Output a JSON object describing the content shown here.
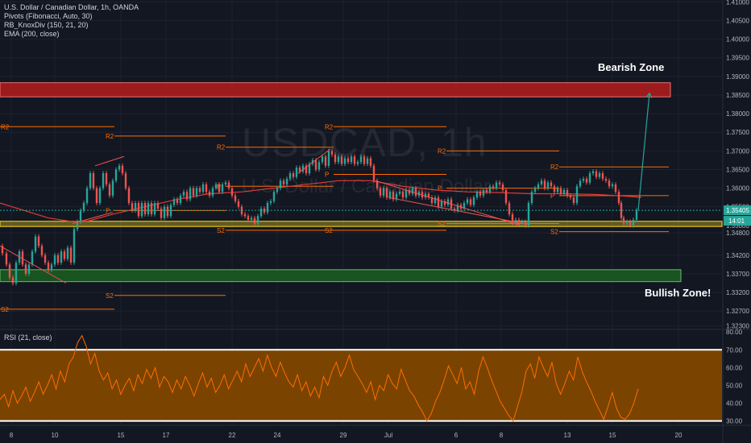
{
  "legend": {
    "symbol": "U.S. Dollar / Canadian Dollar, 1h, OANDA",
    "ind1": "Pivots (Fibonacci, Auto, 30)",
    "ind2": "RB_KnoxDiv (150, 21, 20)",
    "ind3": "EMA (200, close)"
  },
  "rsi_label": "RSI (21, close)",
  "watermark": "USDCAD, 1h",
  "watermark_sub": "U.S. Dollar / Canadian Dollar",
  "zones": {
    "bearish": "Bearish Zone",
    "bullish": "Bullish Zone!"
  },
  "price_badges": {
    "last": "1.35405",
    "countdown": "14:01"
  },
  "colors": {
    "background": "#131722",
    "candle_up": "#26a69a",
    "candle_down": "#ef5350",
    "pivot": "#ff6d00",
    "ema": "#e53935",
    "bearish_zone": "#b71c1c",
    "bullish_zone": "#1b5e20",
    "support_band": "#f9d71c",
    "rsi_fill": "#7a4300",
    "rsi_line": "#ff6d00",
    "projection": "#26a69a"
  },
  "chart_data": [
    {
      "type": "candlestick",
      "title": "USDCAD, 1h",
      "y_ticks": [
        "1.41000",
        "1.40500",
        "1.40000",
        "1.39500",
        "1.39000",
        "1.38500",
        "1.38000",
        "1.37500",
        "1.37000",
        "1.36500",
        "1.36000",
        "1.35500",
        "1.35000",
        "1.34800",
        "1.34200",
        "1.33700",
        "1.33200",
        "1.32700",
        "1.32300"
      ],
      "x_ticks": [
        "8",
        "10",
        "15",
        "17",
        "22",
        "24",
        "29",
        "Jul",
        "6",
        "8",
        "13",
        "15",
        "20"
      ],
      "ylim": [
        1.3225,
        1.4105
      ],
      "last_price": 1.35405,
      "zones": [
        {
          "name": "Bearish Zone",
          "y_from": 1.3845,
          "y_to": 1.3883
        },
        {
          "name": "Bullish Zone!",
          "y_from": 1.3349,
          "y_to": 1.3381
        },
        {
          "name": "support",
          "y_from": 1.3497,
          "y_to": 1.3511
        }
      ],
      "pivot_labels": [
        "R2",
        "P",
        "S2"
      ],
      "price_path": [
        [
          0,
          1.3445
        ],
        [
          6,
          1.3425
        ],
        [
          10,
          1.3395
        ],
        [
          14,
          1.336
        ],
        [
          18,
          1.3345
        ],
        [
          22,
          1.34
        ],
        [
          26,
          1.343
        ],
        [
          30,
          1.3395
        ],
        [
          34,
          1.337
        ],
        [
          38,
          1.3395
        ],
        [
          42,
          1.343
        ],
        [
          46,
          1.347
        ],
        [
          50,
          1.3445
        ],
        [
          54,
          1.342
        ],
        [
          58,
          1.34
        ],
        [
          62,
          1.338
        ],
        [
          66,
          1.3395
        ],
        [
          70,
          1.342
        ],
        [
          74,
          1.34
        ],
        [
          78,
          1.343
        ],
        [
          82,
          1.341
        ],
        [
          86,
          1.344
        ],
        [
          90,
          1.34
        ],
        [
          94,
          1.349
        ],
        [
          98,
          1.351
        ],
        [
          102,
          1.354
        ],
        [
          106,
          1.356
        ],
        [
          110,
          1.36
        ],
        [
          114,
          1.364
        ],
        [
          118,
          1.36
        ],
        [
          122,
          1.356
        ],
        [
          126,
          1.36
        ],
        [
          130,
          1.364
        ],
        [
          134,
          1.361
        ],
        [
          138,
          1.358
        ],
        [
          142,
          1.362
        ],
        [
          146,
          1.365
        ],
        [
          150,
          1.366
        ],
        [
          154,
          1.364
        ],
        [
          158,
          1.36
        ],
        [
          162,
          1.356
        ],
        [
          166,
          1.354
        ],
        [
          170,
          1.356
        ],
        [
          174,
          1.3525
        ],
        [
          178,
          1.356
        ],
        [
          182,
          1.353
        ],
        [
          186,
          1.356
        ],
        [
          190,
          1.353
        ],
        [
          194,
          1.356
        ],
        [
          198,
          1.3545
        ],
        [
          202,
          1.352
        ],
        [
          206,
          1.355
        ],
        [
          210,
          1.3525
        ],
        [
          214,
          1.3555
        ],
        [
          218,
          1.357
        ],
        [
          222,
          1.356
        ],
        [
          226,
          1.358
        ],
        [
          230,
          1.359
        ],
        [
          234,
          1.357
        ],
        [
          238,
          1.36
        ],
        [
          242,
          1.358
        ],
        [
          246,
          1.36
        ],
        [
          250,
          1.359
        ],
        [
          254,
          1.361
        ],
        [
          258,
          1.359
        ],
        [
          262,
          1.358
        ],
        [
          266,
          1.36
        ],
        [
          270,
          1.361
        ],
        [
          274,
          1.359
        ],
        [
          278,
          1.361
        ],
        [
          282,
          1.3615
        ],
        [
          286,
          1.36
        ],
        [
          290,
          1.358
        ],
        [
          294,
          1.3565
        ],
        [
          298,
          1.355
        ],
        [
          302,
          1.353
        ],
        [
          306,
          1.3525
        ],
        [
          310,
          1.3515
        ],
        [
          314,
          1.352
        ],
        [
          318,
          1.3505
        ],
        [
          322,
          1.3525
        ],
        [
          326,
          1.3545
        ],
        [
          330,
          1.3535
        ],
        [
          334,
          1.356
        ],
        [
          338,
          1.3565
        ],
        [
          342,
          1.359
        ],
        [
          346,
          1.36
        ],
        [
          350,
          1.362
        ],
        [
          354,
          1.361
        ],
        [
          358,
          1.3625
        ],
        [
          362,
          1.364
        ],
        [
          366,
          1.363
        ],
        [
          370,
          1.3655
        ],
        [
          374,
          1.3645
        ],
        [
          378,
          1.366
        ],
        [
          382,
          1.364
        ],
        [
          386,
          1.3665
        ],
        [
          390,
          1.3675
        ],
        [
          394,
          1.365
        ],
        [
          398,
          1.367
        ],
        [
          402,
          1.3685
        ],
        [
          406,
          1.366
        ],
        [
          410,
          1.37
        ],
        [
          414,
          1.369
        ],
        [
          418,
          1.367
        ],
        [
          422,
          1.3685
        ],
        [
          426,
          1.3665
        ],
        [
          430,
          1.368
        ],
        [
          434,
          1.367
        ],
        [
          438,
          1.3685
        ],
        [
          442,
          1.3665
        ],
        [
          446,
          1.367
        ],
        [
          450,
          1.3685
        ],
        [
          454,
          1.3665
        ],
        [
          458,
          1.368
        ],
        [
          462,
          1.366
        ],
        [
          466,
          1.362
        ],
        [
          470,
          1.36
        ],
        [
          474,
          1.358
        ],
        [
          478,
          1.36
        ],
        [
          482,
          1.3575
        ],
        [
          486,
          1.359
        ],
        [
          490,
          1.357
        ],
        [
          494,
          1.3585
        ],
        [
          498,
          1.359
        ],
        [
          502,
          1.3575
        ],
        [
          506,
          1.3595
        ],
        [
          510,
          1.3585
        ],
        [
          514,
          1.36
        ],
        [
          518,
          1.358
        ],
        [
          522,
          1.359
        ],
        [
          526,
          1.3575
        ],
        [
          530,
          1.3585
        ],
        [
          534,
          1.3575
        ],
        [
          538,
          1.356
        ],
        [
          542,
          1.3575
        ],
        [
          546,
          1.355
        ],
        [
          550,
          1.3565
        ],
        [
          554,
          1.3555
        ],
        [
          558,
          1.357
        ],
        [
          562,
          1.3545
        ],
        [
          566,
          1.354
        ],
        [
          570,
          1.3555
        ],
        [
          574,
          1.3545
        ],
        [
          578,
          1.356
        ],
        [
          582,
          1.357
        ],
        [
          586,
          1.3555
        ],
        [
          590,
          1.3575
        ],
        [
          594,
          1.359
        ],
        [
          598,
          1.358
        ],
        [
          602,
          1.3595
        ],
        [
          606,
          1.359
        ],
        [
          610,
          1.3605
        ],
        [
          614,
          1.36
        ],
        [
          618,
          1.3615
        ],
        [
          622,
          1.361
        ],
        [
          626,
          1.3595
        ],
        [
          630,
          1.356
        ],
        [
          634,
          1.353
        ],
        [
          638,
          1.3505
        ],
        [
          642,
          1.3515
        ],
        [
          646,
          1.3505
        ],
        [
          650,
          1.351
        ],
        [
          654,
          1.35
        ],
        [
          658,
          1.356
        ],
        [
          662,
          1.359
        ],
        [
          666,
          1.36
        ],
        [
          670,
          1.361
        ],
        [
          674,
          1.362
        ],
        [
          678,
          1.36
        ],
        [
          682,
          1.3615
        ],
        [
          686,
          1.3605
        ],
        [
          690,
          1.359
        ],
        [
          694,
          1.36
        ],
        [
          698,
          1.3585
        ],
        [
          702,
          1.3595
        ],
        [
          706,
          1.358
        ],
        [
          710,
          1.3575
        ],
        [
          714,
          1.356
        ],
        [
          718,
          1.3605
        ],
        [
          722,
          1.362
        ],
        [
          726,
          1.3625
        ],
        [
          730,
          1.3615
        ],
        [
          734,
          1.364
        ],
        [
          738,
          1.3645
        ],
        [
          742,
          1.363
        ],
        [
          746,
          1.364
        ],
        [
          750,
          1.3625
        ],
        [
          754,
          1.362
        ],
        [
          758,
          1.3605
        ],
        [
          762,
          1.361
        ],
        [
          766,
          1.359
        ],
        [
          770,
          1.356
        ],
        [
          772,
          1.352
        ],
        [
          776,
          1.3505
        ],
        [
          780,
          1.351
        ],
        [
          784,
          1.35
        ],
        [
          788,
          1.3515
        ],
        [
          792,
          1.354
        ]
      ],
      "ema_path": [
        [
          0,
          1.356
        ],
        [
          30,
          1.354
        ],
        [
          60,
          1.352
        ],
        [
          90,
          1.351
        ],
        [
          110,
          1.3512
        ],
        [
          140,
          1.353
        ],
        [
          180,
          1.355
        ],
        [
          220,
          1.357
        ],
        [
          260,
          1.3585
        ],
        [
          300,
          1.359
        ],
        [
          340,
          1.36
        ],
        [
          380,
          1.361
        ],
        [
          420,
          1.362
        ],
        [
          460,
          1.362
        ],
        [
          500,
          1.3605
        ],
        [
          540,
          1.3595
        ],
        [
          580,
          1.359
        ],
        [
          620,
          1.3588
        ],
        [
          660,
          1.3585
        ],
        [
          700,
          1.3585
        ],
        [
          740,
          1.3583
        ],
        [
          780,
          1.3578
        ],
        [
          796,
          1.3575
        ]
      ],
      "pivot_levels": [
        {
          "label": "R2",
          "x_from": 0,
          "x_to": 142,
          "y": 1.3765
        },
        {
          "label": "R2",
          "x_from": 142,
          "x_to": 280,
          "y": 1.374
        },
        {
          "label": "R2",
          "x_from": 280,
          "x_to": 414,
          "y": 1.371
        },
        {
          "label": "R2",
          "x_from": 414,
          "x_to": 554,
          "y": 1.3765
        },
        {
          "label": "R2",
          "x_from": 554,
          "x_to": 694,
          "y": 1.37
        },
        {
          "label": "R2",
          "x_from": 694,
          "x_to": 830,
          "y": 1.3657
        },
        {
          "label": "P",
          "x_from": 142,
          "x_to": 280,
          "y": 1.354
        },
        {
          "label": "P",
          "x_from": 280,
          "x_to": 414,
          "y": 1.3605
        },
        {
          "label": "P",
          "x_from": 414,
          "x_to": 554,
          "y": 1.3637
        },
        {
          "label": "P",
          "x_from": 554,
          "x_to": 694,
          "y": 1.36
        },
        {
          "label": "P",
          "x_from": 694,
          "x_to": 830,
          "y": 1.358
        },
        {
          "label": "S2",
          "x_from": 0,
          "x_to": 142,
          "y": 1.3275
        },
        {
          "label": "S2",
          "x_from": 142,
          "x_to": 280,
          "y": 1.3312
        },
        {
          "label": "S2",
          "x_from": 280,
          "x_to": 414,
          "y": 1.3487
        },
        {
          "label": "S2",
          "x_from": 414,
          "x_to": 554,
          "y": 1.3487
        },
        {
          "label": "S2",
          "x_from": 554,
          "x_to": 694,
          "y": 1.3505
        },
        {
          "label": "S2",
          "x_from": 694,
          "x_to": 830,
          "y": 1.3483
        }
      ],
      "projection": [
        [
          792,
          1.354
        ],
        [
          806,
          1.3855
        ]
      ]
    },
    {
      "type": "line",
      "title": "RSI (21, close)",
      "y_ticks": [
        "80.00",
        "70.00",
        "60.00",
        "50.00",
        "40.00",
        "30.00"
      ],
      "ylim": [
        28,
        81
      ],
      "bands": [
        30,
        70
      ],
      "values": [
        42,
        45,
        38,
        47,
        40,
        44,
        49,
        41,
        46,
        52,
        45,
        50,
        56,
        48,
        58,
        52,
        62,
        66,
        74,
        78,
        72,
        62,
        68,
        58,
        53,
        57,
        48,
        53,
        45,
        50,
        54,
        47,
        56,
        51,
        59,
        54,
        60,
        49,
        55,
        52,
        46,
        53,
        48,
        55,
        50,
        44,
        51,
        57,
        49,
        54,
        46,
        50,
        56,
        48,
        53,
        58,
        52,
        62,
        55,
        60,
        65,
        58,
        67,
        60,
        55,
        63,
        57,
        52,
        49,
        56,
        47,
        52,
        44,
        49,
        43,
        55,
        50,
        58,
        63,
        55,
        60,
        67,
        59,
        55,
        51,
        46,
        52,
        42,
        50,
        47,
        56,
        51,
        48,
        59,
        53,
        47,
        44,
        39,
        35,
        30,
        34,
        41,
        46,
        53,
        61,
        56,
        51,
        60,
        48,
        52,
        45,
        58,
        66,
        60,
        53,
        47,
        41,
        37,
        33,
        30,
        38,
        46,
        58,
        62,
        54,
        66,
        60,
        55,
        63,
        51,
        45,
        51,
        58,
        53,
        66,
        58,
        52,
        47,
        41,
        36,
        31,
        38,
        46,
        37,
        32,
        31,
        34,
        40,
        48
      ]
    }
  ]
}
